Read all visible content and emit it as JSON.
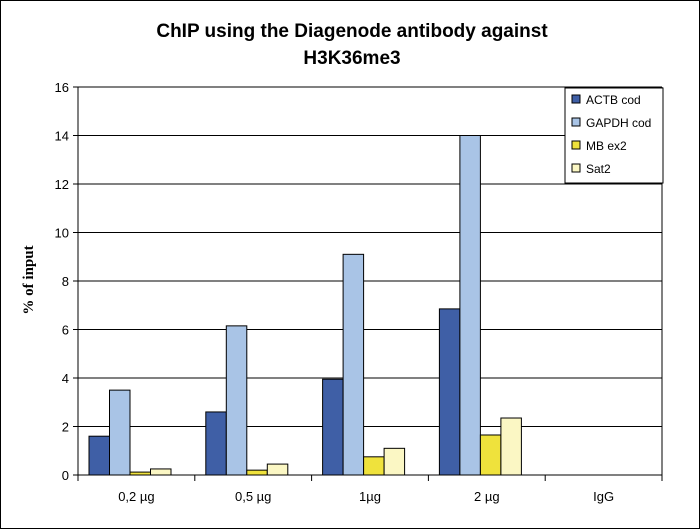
{
  "chart_data": {
    "type": "bar",
    "title_lines": [
      "ChIP using the Diagenode antibody against",
      "H3K36me3"
    ],
    "xlabel": "",
    "ylabel": "% of input",
    "ylim": [
      0,
      16
    ],
    "yticks": [
      0,
      2,
      4,
      6,
      8,
      10,
      12,
      14,
      16
    ],
    "grid": true,
    "legend_position": "top-right",
    "categories": [
      "0,2 µg",
      "0,5 µg",
      "1µg",
      "2 µg",
      "IgG"
    ],
    "series": [
      {
        "name": "ACTB cod",
        "color": "#3f5fa6",
        "values": [
          1.6,
          2.6,
          3.95,
          6.85,
          0
        ]
      },
      {
        "name": "GAPDH cod",
        "color": "#a9c4e6",
        "values": [
          3.5,
          6.15,
          9.1,
          14.0,
          0
        ]
      },
      {
        "name": "MB ex2",
        "color": "#efe23c",
        "values": [
          0.12,
          0.2,
          0.75,
          1.65,
          0
        ]
      },
      {
        "name": "Sat2",
        "color": "#fbf7c4",
        "values": [
          0.25,
          0.45,
          1.1,
          2.35,
          0
        ]
      }
    ]
  }
}
